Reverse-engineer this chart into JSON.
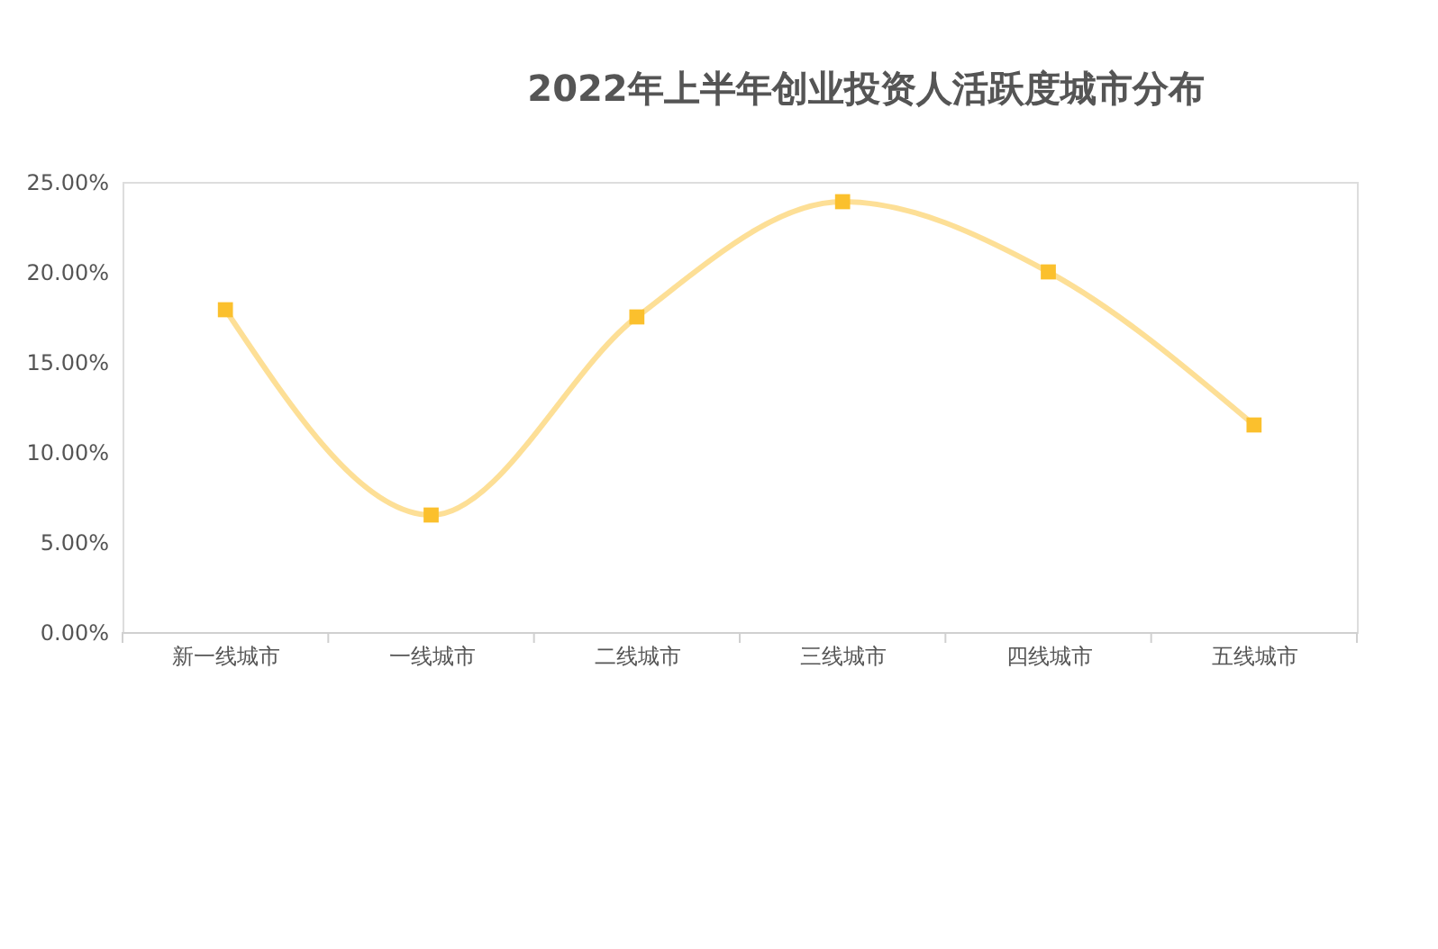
{
  "chart_data": {
    "type": "line",
    "title": "2022年上半年创业投资人活跃度城市分布",
    "categories": [
      "新一线城市",
      "一线城市",
      "二线城市",
      "三线城市",
      "四线城市",
      "五线城市"
    ],
    "series": [
      {
        "color": "#fbc02d",
        "values": [
          17.9,
          6.5,
          17.5,
          23.9,
          20.0,
          11.5
        ]
      }
    ],
    "ylim": [
      0,
      25
    ],
    "yticks": [
      {
        "value": 0,
        "label": "0.00%"
      },
      {
        "value": 5,
        "label": "5.00%"
      },
      {
        "value": 10,
        "label": "10.00%"
      },
      {
        "value": 15,
        "label": "15.00%"
      },
      {
        "value": 20,
        "label": "20.00%"
      },
      {
        "value": 25,
        "label": "25.00%"
      }
    ],
    "marker": "square",
    "grid": false
  }
}
